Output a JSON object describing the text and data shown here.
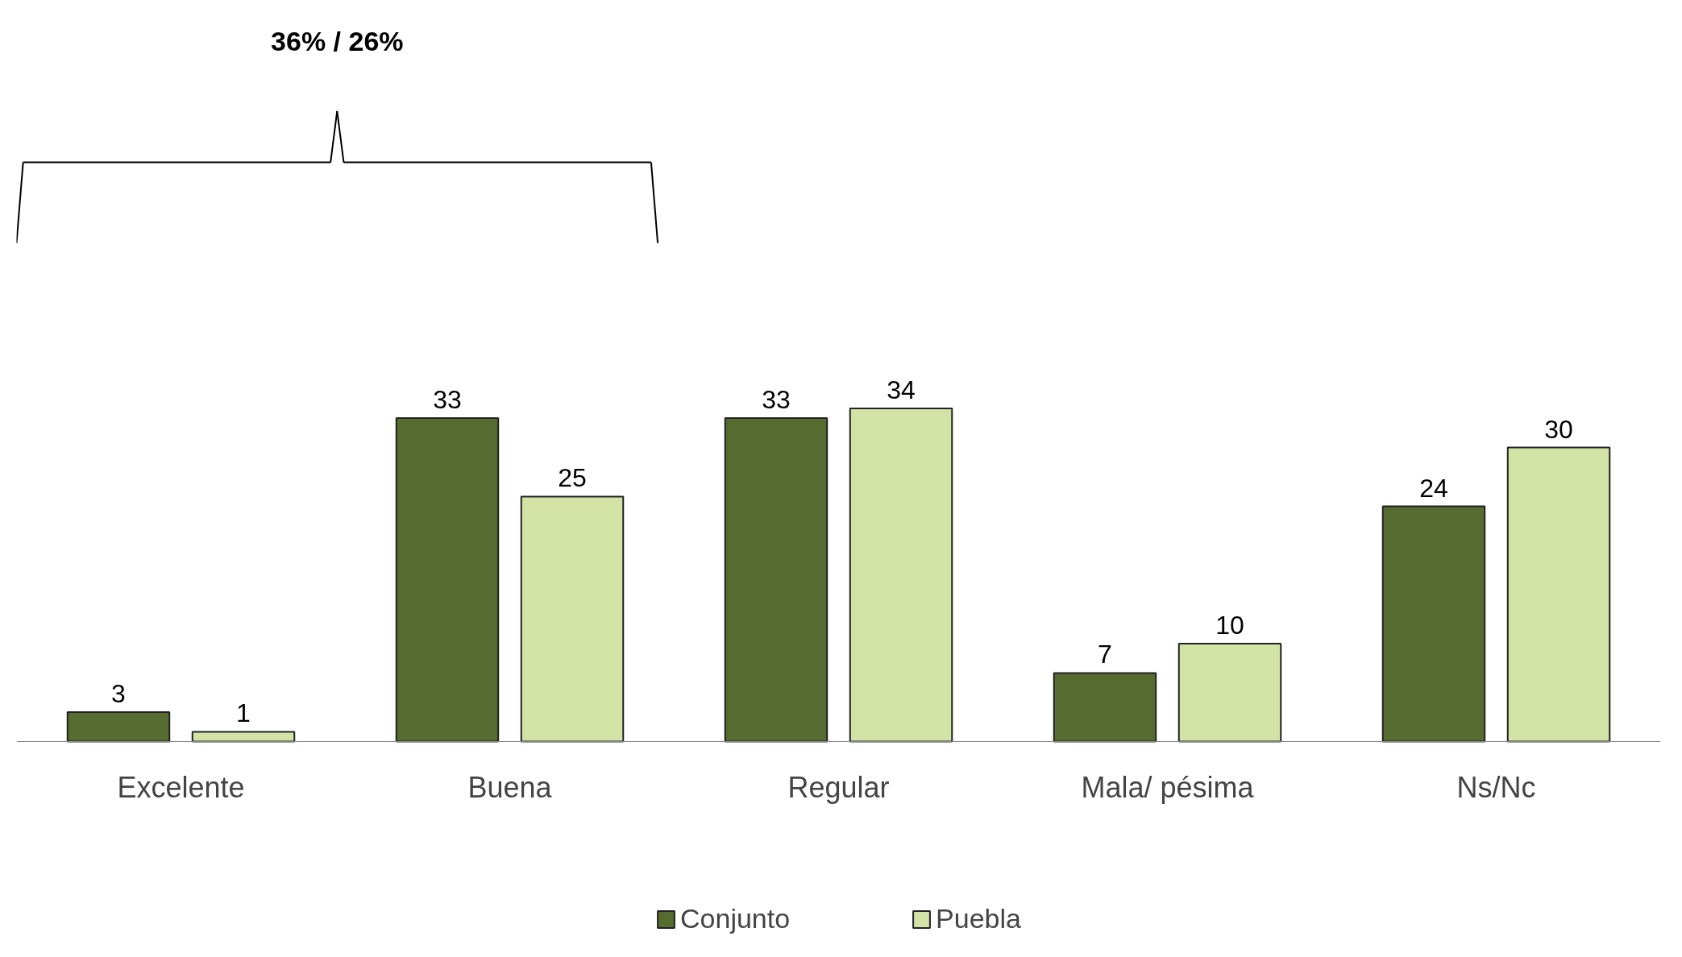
{
  "chart_data": {
    "type": "bar",
    "categories": [
      "Excelente",
      "Buena",
      "Regular",
      "Mala/ pésima",
      "Ns/Nc"
    ],
    "series": [
      {
        "name": "Conjunto",
        "color": "#556b2f",
        "values": [
          3,
          33,
          33,
          7,
          24
        ]
      },
      {
        "name": "Puebla",
        "color": "#d3e3a6",
        "values": [
          1,
          25,
          34,
          10,
          30
        ]
      }
    ],
    "data_labels": true,
    "legend": "bottom",
    "grid": false,
    "annotations": [
      "36% / 26%"
    ]
  }
}
